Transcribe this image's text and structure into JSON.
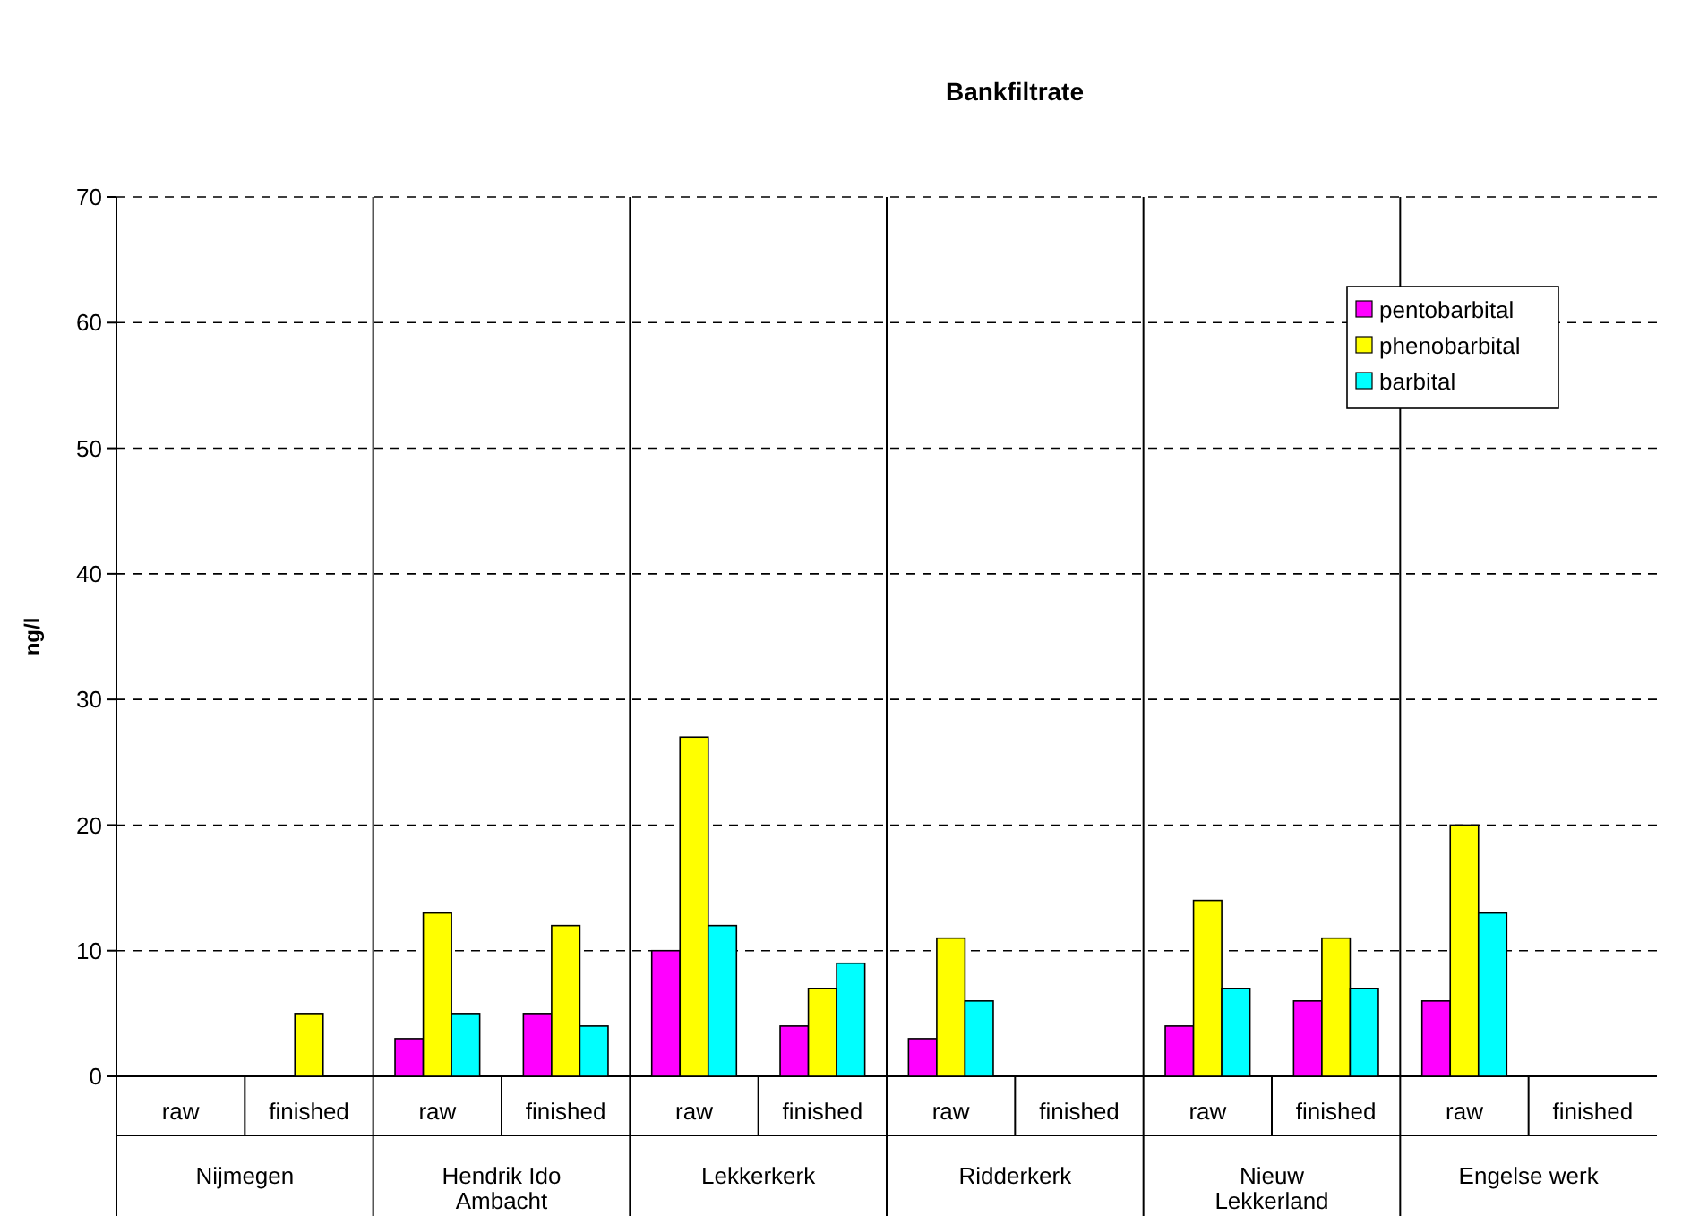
{
  "chart_data": {
    "type": "bar",
    "title": "Bankfiltrate",
    "ylabel": "ng/l",
    "categories": [
      "raw",
      "finished",
      "raw",
      "finished",
      "raw",
      "finished",
      "raw",
      "finished",
      "raw",
      "finished",
      "raw",
      "finished"
    ],
    "annotations": [
      "Nijmegen",
      "Hendrik Ido Ambacht",
      "Lekkerkerk",
      "Ridderkerk",
      "Nieuw Lekkerland",
      "Engelse werk"
    ],
    "series": [
      {
        "name": "pentobarbital",
        "color": "#ff00ff",
        "values": [
          null,
          null,
          3,
          5,
          10,
          4,
          3,
          null,
          4,
          6,
          6,
          null
        ]
      },
      {
        "name": "phenobarbital",
        "color": "#ffff00",
        "values": [
          null,
          5,
          13,
          12,
          27,
          7,
          11,
          null,
          14,
          11,
          20,
          null
        ]
      },
      {
        "name": "barbital",
        "color": "#00ffff",
        "values": [
          null,
          null,
          5,
          4,
          12,
          9,
          6,
          null,
          7,
          7,
          13,
          null
        ]
      }
    ],
    "ylim": [
      0,
      70
    ],
    "yticks": [
      0,
      10,
      20,
      30,
      40,
      50,
      60,
      70
    ],
    "grid": "y",
    "legend": "top right"
  }
}
